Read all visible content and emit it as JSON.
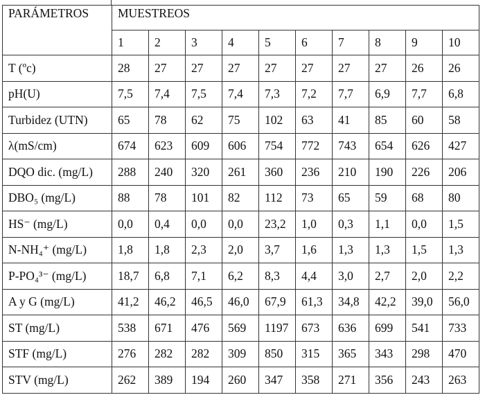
{
  "table": {
    "param_header": "PARÁMETROS",
    "group_header": "MUESTREOS",
    "samples": [
      "1",
      "2",
      "3",
      "4",
      "5",
      "6",
      "7",
      "8",
      "9",
      "10"
    ],
    "rows": [
      {
        "label": "T (ºc)",
        "values": [
          "28",
          "27",
          "27",
          "27",
          "27",
          "27",
          "27",
          "27",
          "26",
          "26"
        ]
      },
      {
        "label": "pH(U)",
        "values": [
          "7,5",
          "7,4",
          "7,5",
          "7,4",
          "7,3",
          "7,2",
          "7,7",
          "6,9",
          "7,7",
          "6,8"
        ]
      },
      {
        "label": "Turbidez (UTN)",
        "values": [
          "65",
          "78",
          "62",
          "75",
          "102",
          "63",
          "41",
          "85",
          "60",
          "58"
        ]
      },
      {
        "label": "λ(mS/cm)",
        "values": [
          "674",
          "623",
          "609",
          "606",
          "754",
          "772",
          "743",
          "654",
          "626",
          "427"
        ]
      },
      {
        "label": "DQO dic. (mg/L)",
        "values": [
          "288",
          "240",
          "320",
          "261",
          "360",
          "236",
          "210",
          "190",
          "226",
          "206"
        ]
      },
      {
        "label": "DBO₅ (mg/L)",
        "values": [
          "88",
          "78",
          "101",
          "82",
          "112",
          "73",
          "65",
          "59",
          "68",
          "80"
        ]
      },
      {
        "label": "HS⁻ (mg/L)",
        "values": [
          "0,0",
          "0,4",
          "0,0",
          "0,0",
          "23,2",
          "1,0",
          "0,3",
          "1,1",
          "0,0",
          "1,5"
        ]
      },
      {
        "label": "N-NH₄⁺ (mg/L)",
        "values": [
          "1,8",
          "1,8",
          "2,3",
          "2,0",
          "3,7",
          "1,6",
          "1,3",
          "1,3",
          "1,5",
          "1,3"
        ]
      },
      {
        "label": "P-PO₄³⁻ (mg/L)",
        "values": [
          "18,7",
          "6,8",
          "7,1",
          "6,2",
          "8,3",
          "4,4",
          "3,0",
          "2,7",
          "2,0",
          "2,2"
        ]
      },
      {
        "label": "A y G (mg/L)",
        "values": [
          "41,2",
          "46,2",
          "46,5",
          "46,0",
          "67,9",
          "61,3",
          "34,8",
          "42,2",
          "39,0",
          "56,0"
        ]
      },
      {
        "label": "ST (mg/L)",
        "values": [
          "538",
          "671",
          "476",
          "569",
          "1197",
          "673",
          "636",
          "699",
          "541",
          "733"
        ]
      },
      {
        "label": "STF (mg/L)",
        "values": [
          "276",
          "282",
          "282",
          "309",
          "850",
          "315",
          "365",
          "343",
          "298",
          "470"
        ]
      },
      {
        "label": "STV (mg/L)",
        "values": [
          "262",
          "389",
          "194",
          "260",
          "347",
          "358",
          "271",
          "356",
          "243",
          "263"
        ]
      }
    ]
  }
}
